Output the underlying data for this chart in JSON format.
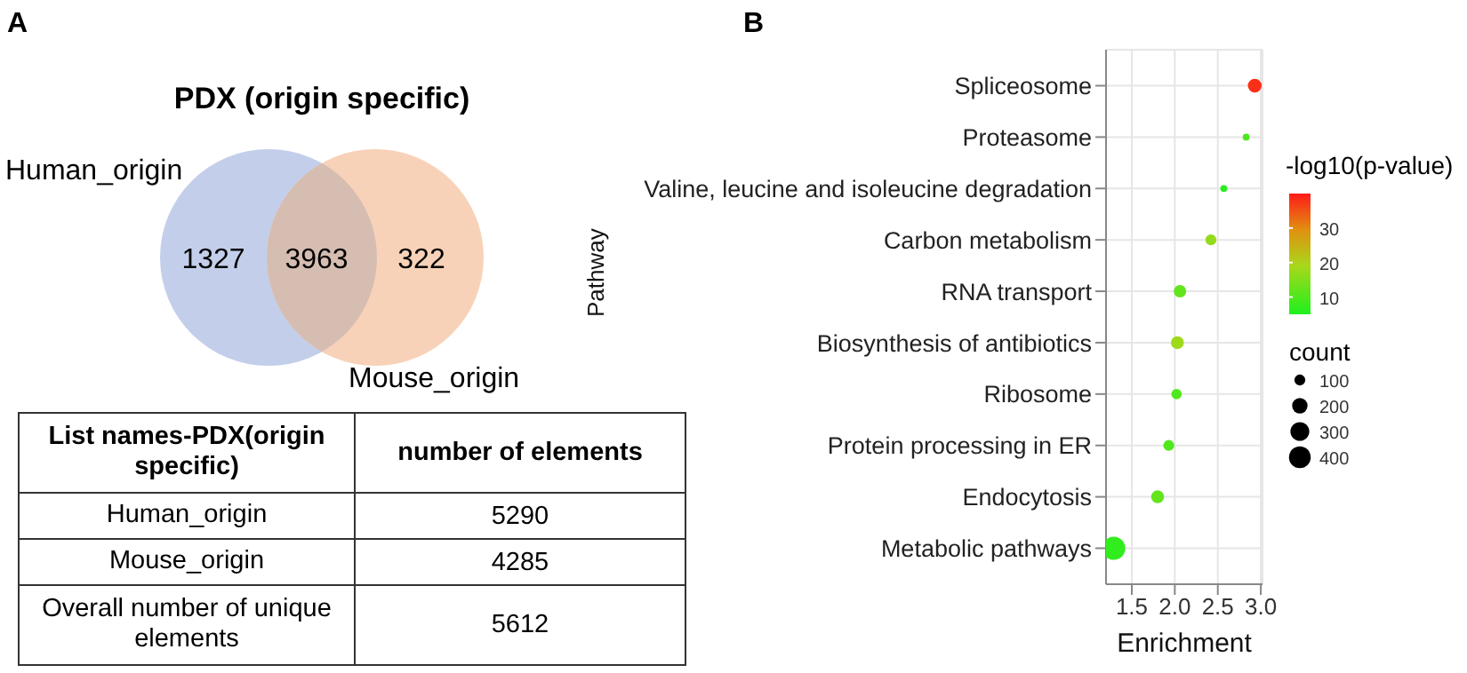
{
  "chart_data": [
    {
      "type": "other",
      "title": "PDX (origin specific)",
      "categories": [
        null,
        null,
        null
      ],
      "colors": [
        "#c3cfea",
        "#d6bdb2",
        "#f8d2b8"
      ],
      "values": [
        1327,
        3963,
        322
      ],
      "data_labels": true,
      "annotations": [
        "A",
        "Human_origin",
        "Mouse_origin"
      ]
    },
    {
      "type": "other",
      "categories": [
        "Human_origin",
        "Mouse_origin",
        "Overall number of unique elements"
      ],
      "values": [
        5290,
        4285,
        5612
      ],
      "data_labels": true,
      "annotations": [
        "List names-PDX(origin specific)",
        "number of elements"
      ]
    },
    {
      "type": "bubble",
      "orientation": "horizontal",
      "categories": [
        "Spliceosome",
        "Proteasome",
        "Valine, leucine and isoleucine degradation",
        "Carbon metabolism",
        "RNA transport",
        "Biosynthesis of antibiotics",
        "Ribosome",
        "Protein processing in ER",
        "Endocytosis",
        "Metabolic pathways"
      ],
      "values": [
        2.93,
        2.83,
        2.57,
        2.42,
        2.06,
        2.03,
        2.02,
        1.93,
        1.8,
        1.29
      ],
      "sizes": [
        160,
        40,
        40,
        100,
        130,
        140,
        90,
        100,
        140,
        450
      ],
      "cvalues": [
        38,
        10,
        6,
        17,
        12,
        18,
        10,
        10,
        12,
        7
      ],
      "clim": [
        5,
        40
      ],
      "cticks": [
        10,
        20,
        30
      ],
      "clabel": "-log10(p-value)",
      "size_legend": [
        100,
        200,
        300,
        400
      ],
      "legend_title": "count",
      "xlim": [
        1.2,
        3.02
      ],
      "xticks": [
        1.5,
        {
          "value": 2,
          "label": "2.0"
        },
        2.5,
        {
          "value": 3,
          "label": "3.0"
        }
      ],
      "xlabel": "Enrichment",
      "ylabel": "Pathway",
      "grid": true,
      "annotations": [
        "B"
      ]
    }
  ]
}
